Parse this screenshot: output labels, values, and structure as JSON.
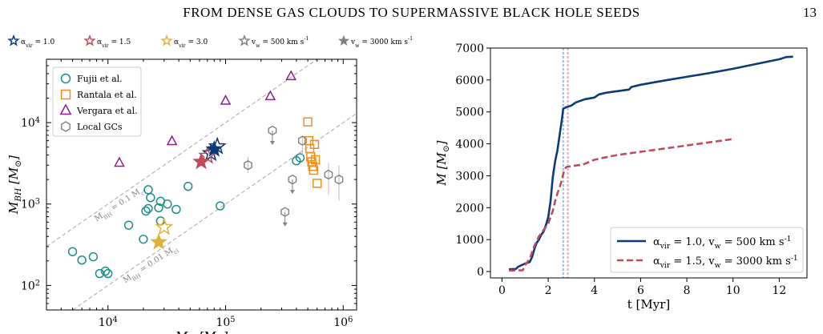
{
  "header": {
    "title": "FROM DENSE GAS CLOUDS TO SUPERMASSIVE BLACK HOLE SEEDS",
    "page_number": "13"
  },
  "colors": {
    "teal": "#1a8f8a",
    "orange": "#f28e1c",
    "purple": "#8e1f8e",
    "gray": "#808080",
    "navy": "#0b3a78",
    "rose": "#c04a5e",
    "gold": "#e0b23a",
    "vline_blue": "#9dc0e0",
    "vline_pink": "#e8a9b6"
  },
  "chart_data": [
    {
      "type": "scatter",
      "xlabel": "M_cl [M_⊙]",
      "ylabel": "M_BH [M_⊙]",
      "xscale": "log",
      "yscale": "log",
      "xlim": [
        3000,
        1300000
      ],
      "ylim": [
        50,
        60000
      ],
      "xticks": [
        10000,
        100000,
        1000000
      ],
      "xtick_labels": [
        "10^4",
        "10^5",
        "10^6"
      ],
      "yticks": [
        100,
        1000,
        10000
      ],
      "ytick_labels": [
        "10^2",
        "10^3",
        "10^4"
      ],
      "top_legend": [
        {
          "label": "α_vir = 1.0",
          "marker": "star-open",
          "color": "#0b3a78"
        },
        {
          "label": "α_vir = 1.5",
          "marker": "star-open",
          "color": "#c04a5e"
        },
        {
          "label": "α_vir = 3.0",
          "marker": "star-open",
          "color": "#e0b23a"
        },
        {
          "label": "v_w = 500 km s^-1",
          "marker": "star-open",
          "color": "#808080"
        },
        {
          "label": "v_w = 3000 km s^-1",
          "marker": "star-filled",
          "color": "#808080"
        }
      ],
      "legend": [
        {
          "label": "Fujii et al.",
          "marker": "circle",
          "color": "#1a8f8a"
        },
        {
          "label": "Rantala et al.",
          "marker": "square",
          "color": "#f28e1c"
        },
        {
          "label": "Vergara et al.",
          "marker": "triangle",
          "color": "#8e1f8e"
        },
        {
          "label": "Local GCs",
          "marker": "hexagon",
          "color": "#808080"
        }
      ],
      "reference_lines": [
        {
          "label": "M_BH = 0.1 M_cl",
          "factor": 0.1
        },
        {
          "label": "M_BH = 0.01 M_cl",
          "factor": 0.01
        }
      ],
      "series": [
        {
          "name": "Fujii et al.",
          "marker": "circle",
          "color": "#1a8f8a",
          "x": [
            5000,
            6000,
            7500,
            8500,
            9500,
            10000,
            15000,
            20000,
            21000,
            22000,
            22000,
            23000,
            27000,
            28000,
            28000,
            32000,
            38000,
            48000,
            90000,
            400000,
            430000
          ],
          "y": [
            260,
            205,
            225,
            140,
            150,
            140,
            550,
            370,
            820,
            880,
            1500,
            1200,
            900,
            1080,
            620,
            1000,
            860,
            1650,
            950,
            3400,
            3700
          ]
        },
        {
          "name": "Rantala et al.",
          "marker": "square",
          "color": "#f28e1c",
          "x": [
            500000,
            510000,
            520000,
            530000,
            540000,
            550000,
            560000,
            570000,
            580000,
            600000
          ],
          "y": [
            10200,
            6000,
            4800,
            3800,
            3300,
            2900,
            2600,
            5400,
            3500,
            1800
          ]
        },
        {
          "name": "Vergara et al.",
          "marker": "triangle",
          "color": "#8e1f8e",
          "x": [
            12500,
            35000,
            100000,
            240000,
            360000
          ],
          "y": [
            3200,
            5900,
            18500,
            21000,
            37000
          ]
        },
        {
          "name": "Local GCs",
          "marker": "hexagon",
          "color": "#808080",
          "x": [
            155000,
            250000,
            320000,
            370000,
            450000,
            750000,
            920000
          ],
          "y": [
            3000,
            8000,
            800,
            2000,
            6000,
            2300,
            2000
          ],
          "upper_limits": [
            false,
            true,
            true,
            true,
            false,
            false,
            false
          ],
          "err_low": [
            2400,
            0,
            0,
            0,
            4000,
            1300,
            1100
          ],
          "err_high": [
            3800,
            0,
            0,
            0,
            7000,
            3200,
            3000
          ]
        },
        {
          "name": "α_vir = 1.0",
          "marker": "star-open",
          "color": "#0b3a78",
          "x": [
            75000,
            85000
          ],
          "y": [
            4200,
            5100
          ]
        },
        {
          "name": "α_vir = 1.5",
          "marker": "star-open",
          "color": "#c04a5e",
          "x": [
            70000
          ],
          "y": [
            3900
          ]
        },
        {
          "name": "α_vir = 3.0",
          "marker": "star-open",
          "color": "#e0b23a",
          "x": [
            30000
          ],
          "y": [
            520
          ]
        },
        {
          "name": "v_w = 3000 km s^-1 (α_vir = 1.5)",
          "marker": "star-filled",
          "color": "#c04a5e",
          "x": [
            62000
          ],
          "y": [
            3300
          ]
        },
        {
          "name": "v_w = 3000 km s^-1 (α_vir = 3.0)",
          "marker": "star-filled",
          "color": "#e0b23a",
          "x": [
            27000
          ],
          "y": [
            340
          ]
        },
        {
          "name": "v_w = 3000 km s^-1 (α_vir = 1.0)",
          "marker": "star-filled",
          "color": "#0b3a78",
          "x": [
            80000
          ],
          "y": [
            4700
          ]
        }
      ]
    },
    {
      "type": "line",
      "xlabel": "t [Myr]",
      "ylabel": "M [M_⊙]",
      "xlim": [
        -0.5,
        13.2
      ],
      "ylim": [
        -200,
        7000
      ],
      "xticks": [
        0,
        2,
        4,
        6,
        8,
        10,
        12
      ],
      "yticks": [
        0,
        1000,
        2000,
        3000,
        4000,
        5000,
        6000,
        7000
      ],
      "legend_position": "lower-right",
      "vlines": [
        2.65,
        2.85
      ],
      "series": [
        {
          "name": "α_vir = 1.0, v_w = 500 km s^-1",
          "color": "#0b3a78",
          "dash": "solid",
          "t": [
            0.3,
            0.6,
            0.7,
            1.0,
            1.2,
            1.3,
            1.4,
            1.5,
            1.6,
            1.7,
            1.8,
            1.9,
            2.0,
            2.1,
            2.2,
            2.3,
            2.4,
            2.5,
            2.6,
            2.65,
            2.8,
            3.0,
            3.2,
            3.4,
            3.6,
            4.0,
            4.2,
            4.5,
            5.0,
            5.5,
            5.6,
            6.0,
            7.0,
            8.0,
            9.0,
            10.0,
            11.0,
            12.0,
            12.3,
            12.6
          ],
          "M": [
            70,
            80,
            150,
            250,
            300,
            450,
            700,
            900,
            1000,
            1150,
            1250,
            1450,
            1700,
            2200,
            2950,
            3450,
            3800,
            4300,
            4800,
            5100,
            5150,
            5200,
            5300,
            5350,
            5400,
            5450,
            5550,
            5600,
            5650,
            5700,
            5780,
            5850,
            5980,
            6100,
            6220,
            6350,
            6500,
            6650,
            6720,
            6730
          ]
        },
        {
          "name": "α_vir = 1.5, v_w = 3000 km s^-1",
          "color": "#c04a5e",
          "dash": "dashed",
          "t": [
            0.3,
            0.9,
            1.0,
            1.2,
            1.4,
            1.6,
            1.8,
            2.0,
            2.2,
            2.3,
            2.4,
            2.5,
            2.6,
            2.7,
            2.8,
            3.0,
            3.5,
            4.0,
            4.5,
            5.0,
            6.0,
            7.0,
            8.0,
            9.0,
            10.0
          ],
          "M": [
            30,
            40,
            200,
            400,
            800,
            1100,
            1300,
            1500,
            1900,
            2200,
            2450,
            2650,
            2900,
            3200,
            3280,
            3300,
            3350,
            3500,
            3580,
            3650,
            3750,
            3850,
            3950,
            4050,
            4150
          ]
        }
      ]
    }
  ]
}
